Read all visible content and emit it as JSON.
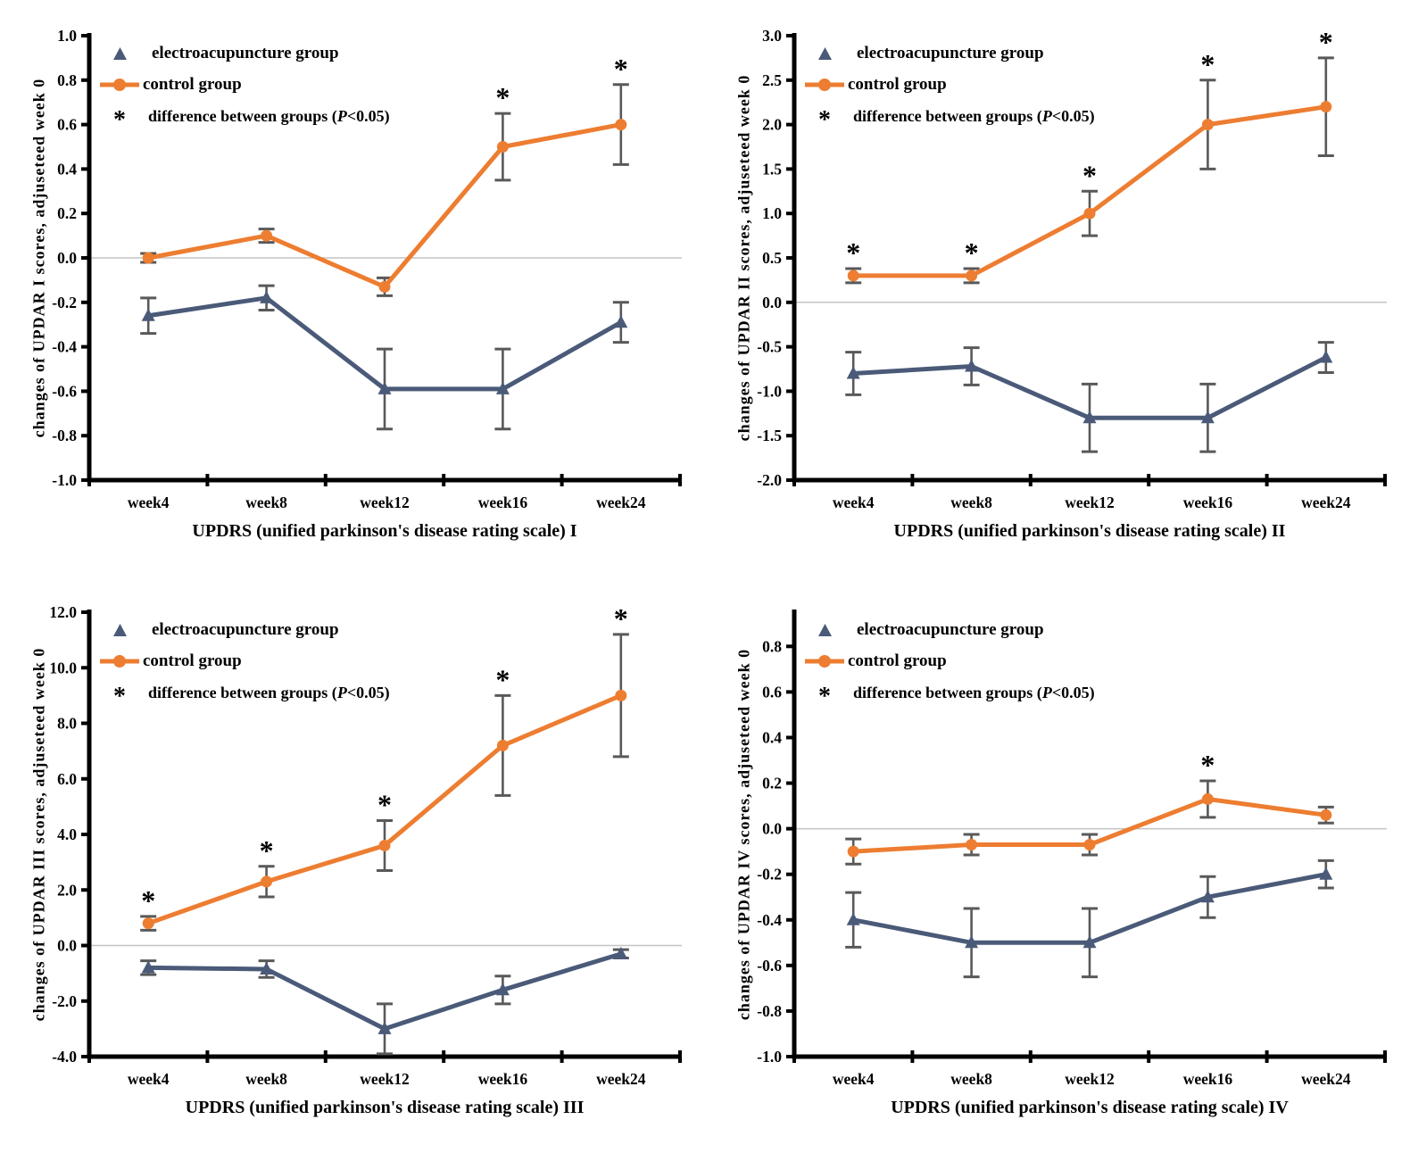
{
  "figure": {
    "legend": {
      "ea_label": "electroacupuncture group",
      "control_label": "control group",
      "sig_symbol": "*",
      "sig_prefix": "difference between groups (",
      "sig_p": "P",
      "sig_suffix": "<0.05)"
    }
  },
  "colors": {
    "ea": "#4A5A78",
    "control": "#ED7D31",
    "error_bar": "#595959",
    "axis": "#000000",
    "zero_line": "#C3C3C3",
    "sig": "#000000"
  },
  "chart_data": [
    {
      "type": "line",
      "title": "UPDRS (unified parkinson's disease rating scale) I",
      "ylabel": "changes of UPDAR I scores, adjuseteed week 0",
      "categories": [
        "week4",
        "week8",
        "week12",
        "week16",
        "week24"
      ],
      "ylim": [
        -1.0,
        1.0
      ],
      "ytick_step": 0.2,
      "grid": "zero-line-only",
      "legend_position": "top-left",
      "series": [
        {
          "name": "electroacupuncture group",
          "marker": "triangle",
          "values": [
            -0.26,
            -0.18,
            -0.59,
            -0.59,
            -0.29
          ],
          "errors": [
            0.08,
            0.055,
            0.18,
            0.18,
            0.09
          ],
          "sig": []
        },
        {
          "name": "control group",
          "marker": "circle",
          "values": [
            0.0,
            0.1,
            -0.13,
            0.5,
            0.6
          ],
          "errors": [
            0.02,
            0.03,
            0.04,
            0.15,
            0.18
          ],
          "sig": [
            3,
            4
          ]
        }
      ]
    },
    {
      "type": "line",
      "title": "UPDRS (unified parkinson's disease rating scale) II",
      "ylabel": "changes of UPDAR II scores, adjuseteed week 0",
      "categories": [
        "week4",
        "week8",
        "week12",
        "week16",
        "week24"
      ],
      "ylim": [
        -2.0,
        3.0
      ],
      "ytick_step": 0.5,
      "grid": "zero-line-only",
      "legend_position": "top-left",
      "series": [
        {
          "name": "electroacupuncture group",
          "marker": "triangle",
          "values": [
            -0.8,
            -0.72,
            -1.3,
            -1.3,
            -0.62
          ],
          "errors": [
            0.24,
            0.21,
            0.38,
            0.38,
            0.17
          ],
          "sig": []
        },
        {
          "name": "control group",
          "marker": "circle",
          "values": [
            0.3,
            0.3,
            1.0,
            2.0,
            2.2
          ],
          "errors": [
            0.08,
            0.08,
            0.25,
            0.5,
            0.55
          ],
          "sig": [
            0,
            1,
            2,
            3,
            4
          ]
        }
      ]
    },
    {
      "type": "line",
      "title": "UPDRS (unified parkinson's disease rating scale) III",
      "ylabel": "changes of UPDAR III scores, adjuseteed week 0",
      "categories": [
        "week4",
        "week8",
        "week12",
        "week16",
        "week24"
      ],
      "ylim": [
        -4.0,
        12.0
      ],
      "ytick_step": 2.0,
      "grid": "zero-line-only",
      "legend_position": "top-left",
      "series": [
        {
          "name": "electroacupuncture group",
          "marker": "triangle",
          "values": [
            -0.8,
            -0.85,
            -3.0,
            -1.6,
            -0.3
          ],
          "errors": [
            0.25,
            0.3,
            0.9,
            0.5,
            0.15
          ],
          "sig": []
        },
        {
          "name": "control group",
          "marker": "circle",
          "values": [
            0.8,
            2.3,
            3.6,
            7.2,
            9.0
          ],
          "errors": [
            0.25,
            0.55,
            0.9,
            1.8,
            2.2
          ],
          "sig": [
            0,
            1,
            2,
            3,
            4
          ]
        }
      ]
    },
    {
      "type": "line",
      "title": "UPDRS (unified parkinson's disease rating scale) IV",
      "ylabel": "changes of UPDAR IV scores, adjuseteed week 0",
      "categories": [
        "week4",
        "week8",
        "week12",
        "week16",
        "week24"
      ],
      "ylim": [
        -1.0,
        0.95
      ],
      "ytick_step": 0.2,
      "grid": "zero-line-only",
      "legend_position": "top-left",
      "series": [
        {
          "name": "electroacupuncture group",
          "marker": "triangle",
          "values": [
            -0.4,
            -0.5,
            -0.5,
            -0.3,
            -0.2
          ],
          "errors": [
            0.12,
            0.15,
            0.15,
            0.09,
            0.06
          ],
          "sig": []
        },
        {
          "name": "control group",
          "marker": "circle",
          "values": [
            -0.1,
            -0.07,
            -0.07,
            0.13,
            0.06
          ],
          "errors": [
            0.055,
            0.045,
            0.045,
            0.08,
            0.035
          ],
          "sig": [
            3
          ]
        }
      ]
    }
  ]
}
